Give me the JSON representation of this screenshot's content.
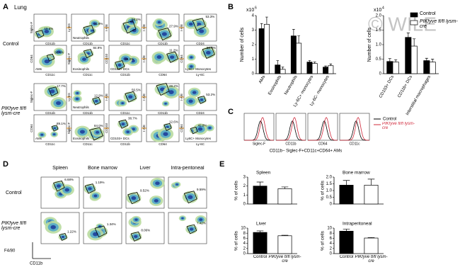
{
  "figure": {
    "panel_labels": [
      "A",
      "B",
      "C",
      "D",
      "E"
    ],
    "watermark": "© WILE",
    "a": {
      "tissue": "Lung",
      "groups": [
        "Control",
        "PIKfyve fl/fl lysm-cre"
      ],
      "plots": [
        {
          "x": "CD11b",
          "y": "Siglec-F"
        },
        {
          "x": "CD11b",
          "y": "Ly-6G",
          "gate": "Neutrophils"
        },
        {
          "x": "CD11c",
          "y": "I-A/E"
        },
        {
          "x": "CD11b",
          "y": "I-A/E"
        },
        {
          "x": "CD24",
          "y": "I-A/E"
        },
        {
          "x": "CD11c",
          "y": "CD64",
          "gate": "AMs"
        },
        {
          "x": "CD11c",
          "y": "Siglec-F",
          "gate": "Eosinophils"
        },
        {
          "x": "CD11b",
          "y": "CD103",
          "gate": "CD103+ DCs"
        },
        {
          "x": "CD64",
          "y": "I-A/E"
        },
        {
          "x": "Ly-6C",
          "y": "CD64",
          "gate": "Ly6C+ Monocytes"
        }
      ],
      "control_pct": [
        "19.6%",
        "11.9%",
        "58.2%",
        "27.9%",
        "53.3%",
        "90.4%",
        "84.9%",
        "39.3%",
        "11.2%",
        "58.8%"
      ],
      "ko_pct": [
        "17.7%",
        "12.9%",
        "56.5%",
        "28.2%",
        "53.2%",
        "89.1%",
        "84.0%",
        "38.7%",
        "12.6%",
        "42.8%"
      ]
    },
    "c": {
      "histograms": [
        "Siglec-F",
        "CD11b",
        "CD64",
        "CD11c"
      ],
      "legend": [
        "Control",
        "PIKfyve fl/fl lysm-cre"
      ],
      "caption": "CD11b− Siglec-F+CD11c+CD64+ AMs"
    },
    "d": {
      "tissues": [
        "Spleen",
        "Bone marrow",
        "Liver",
        "Intra-peritoneal"
      ],
      "groups": [
        "Control",
        "PIKfyve fl/fl lysm-cre"
      ],
      "percentages": [
        [
          "6.68%",
          "1.19%",
          "9.52%",
          "9.59%"
        ],
        [
          "1.22%",
          "1.34%",
          "8.06%",
          "7.42%"
        ]
      ],
      "xlabel": "CD11b",
      "ylabel": "F4/80"
    }
  },
  "chart_data": [
    {
      "type": "bar",
      "ylabel": "Number of cells",
      "scale_base": "x10",
      "scale_exponent": "6",
      "categories": [
        "AMs",
        "Eosinophils",
        "Neutrophils",
        "Ly-6C+ monocytes",
        "Ly-6C- monocytes"
      ],
      "series": [
        {
          "name": "Control",
          "color": "#000000",
          "values": [
            3.1,
            0.6,
            2.6,
            0.8,
            0.45
          ],
          "errors": [
            0.35,
            0.3,
            0.45,
            0.1,
            0.08
          ]
        },
        {
          "name": "PIKfyve fl/fl lysm-cre",
          "color": "#ffffff",
          "values": [
            3.4,
            0.3,
            2.1,
            0.7,
            0.55
          ],
          "errors": [
            0.5,
            0.15,
            0.5,
            0.1,
            0.12
          ]
        }
      ],
      "ylim": [
        0,
        4
      ],
      "yticks": [
        0,
        1,
        2,
        3,
        4
      ],
      "xtick_rotation": -60,
      "legend": "upper right"
    },
    {
      "type": "bar",
      "ylabel": "Number of cells",
      "scale_base": "x10",
      "scale_exponent": "4",
      "categories": [
        "CD103+ DCs",
        "CD11b+ DCs",
        "Interstitial macrophages"
      ],
      "series": [
        {
          "name": "Control",
          "color": "#000000",
          "values": [
            0.42,
            1.25,
            0.45
          ],
          "errors": [
            0.1,
            0.15,
            0.08
          ]
        },
        {
          "name": "PIKfyve fl/fl lysm-cre",
          "color": "#ffffff",
          "values": [
            0.4,
            0.95,
            0.4
          ],
          "errors": [
            0.08,
            0.25,
            0.1
          ]
        }
      ],
      "ylim": [
        0,
        2
      ],
      "yticks": [
        0,
        0.5,
        {
          "value": 1,
          "label": "1.0"
        },
        1.5,
        {
          "value": 2,
          "label": "2.0"
        }
      ],
      "xtick_rotation": -60
    },
    {
      "type": "bar",
      "title": "Spleen",
      "ylabel": "% of cells",
      "categories": [
        null,
        null
      ],
      "values": [
        2.0,
        1.7
      ],
      "errors": [
        0.45,
        0.2
      ],
      "colors": [
        "#000000",
        "#ffffff"
      ],
      "ylim": [
        0,
        3
      ],
      "yticks": [
        0,
        1,
        2,
        3
      ]
    },
    {
      "type": "bar",
      "title": "Bone marrow",
      "ylabel": "% of cells",
      "categories": [
        null,
        null
      ],
      "values": [
        1.4,
        1.4
      ],
      "errors": [
        0.35,
        0.45
      ],
      "colors": [
        "#000000",
        "#ffffff"
      ],
      "ylim": [
        0,
        2
      ],
      "yticks": [
        0,
        0.5,
        {
          "value": 1,
          "label": "1.0"
        },
        1.5,
        {
          "value": 2,
          "label": "2.0"
        }
      ]
    },
    {
      "type": "bar",
      "title": "Liver",
      "ylabel": "% of cells",
      "categories": [
        "Control",
        "PIKfyve fl/fl lysm-cre"
      ],
      "values": [
        8.3,
        7.0
      ],
      "errors": [
        0.6,
        0.2
      ],
      "colors": [
        "#000000",
        "#ffffff"
      ],
      "ylim": [
        0,
        10
      ],
      "yticks": [
        0,
        2,
        4,
        6,
        8,
        10
      ]
    },
    {
      "type": "bar",
      "title": "Intraperitoneal",
      "ylabel": "% of cells",
      "categories": [
        "Control",
        "PIKfyve fl/fl lysm-cre"
      ],
      "values": [
        8.8,
        6.1
      ],
      "errors": [
        0.8,
        0.2
      ],
      "colors": [
        "#000000",
        "#ffffff"
      ],
      "ylim": [
        0,
        10
      ],
      "yticks": [
        0,
        2,
        4,
        6,
        8,
        10
      ]
    }
  ]
}
